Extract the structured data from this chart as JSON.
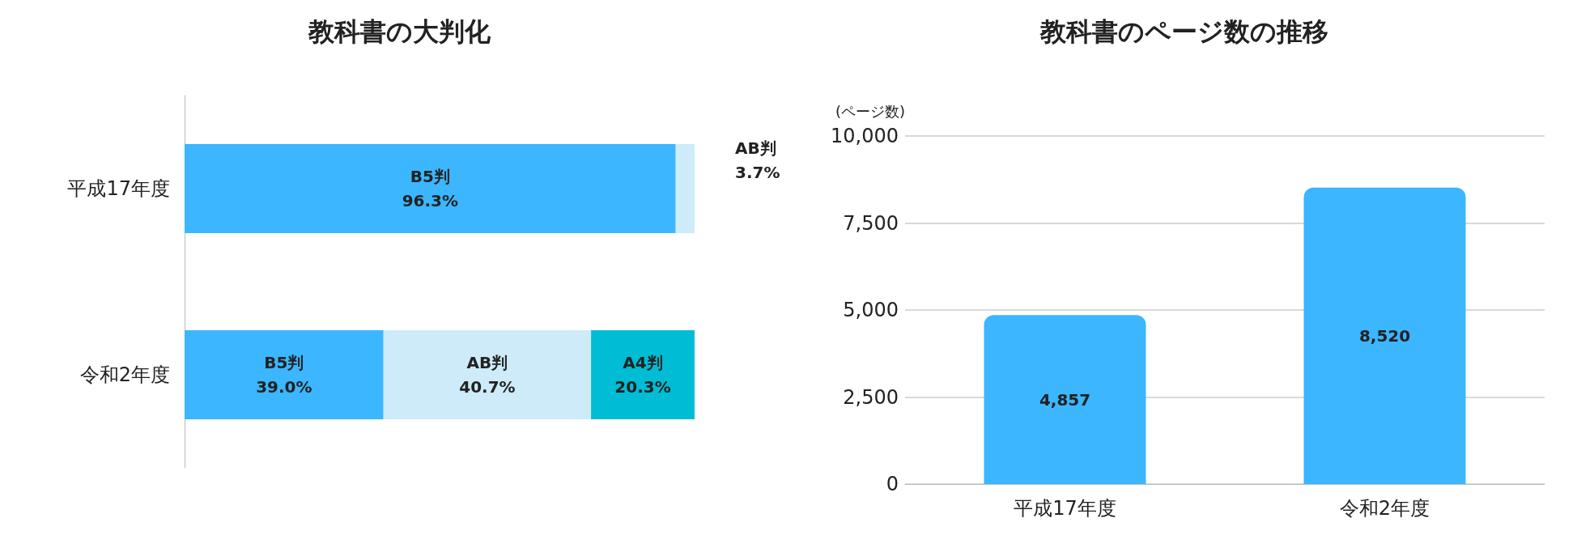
{
  "chart_data": [
    {
      "type": "bar",
      "title": "教科書の大判化",
      "orientation": "horizontal",
      "stacked": true,
      "legend": false,
      "grid": false,
      "categories": [
        "平成17年度",
        "令和2年度"
      ],
      "series": [
        {
          "name": "B5判",
          "color": "#3bb6ff",
          "values": [
            96.3,
            39.0
          ],
          "value_labels": [
            "96.3%",
            "39.0%"
          ]
        },
        {
          "name": "AB判",
          "color": "#cdebf8",
          "values": [
            3.7,
            40.7
          ],
          "value_labels": [
            "3.7%",
            "40.7%"
          ]
        },
        {
          "name": "A4判",
          "color": "#00bcd4",
          "values": [
            null,
            20.3
          ],
          "value_labels": [
            null,
            "20.3%"
          ]
        }
      ]
    },
    {
      "type": "bar",
      "title": "教科書のページ数の推移",
      "ylabel": "(ページ数)",
      "legend": false,
      "grid": "y",
      "categories": [
        "平成17年度",
        "令和2年度"
      ],
      "ylim": [
        0,
        10000
      ],
      "yticks": [
        0,
        {
          "value": 2500,
          "label": "2,500"
        },
        {
          "value": 5000,
          "label": "5,000"
        },
        {
          "value": 7500,
          "label": "7,500"
        },
        {
          "value": 10000,
          "label": "10,000"
        }
      ],
      "series": [
        {
          "color": "#3bb6ff",
          "values": [
            4857,
            8520
          ],
          "value_labels": [
            "4,857",
            "8,520"
          ]
        }
      ]
    }
  ]
}
